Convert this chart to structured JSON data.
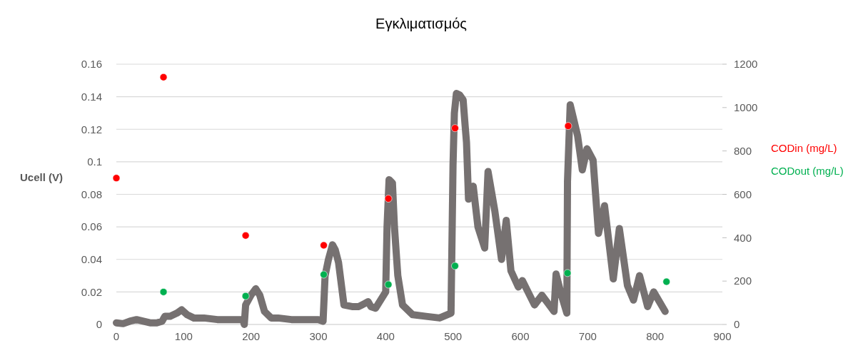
{
  "chart_data": {
    "type": "scatter",
    "title": "Εγκλιματισμός",
    "ylabel": "Ucell (V)",
    "xlim": [
      0,
      900
    ],
    "xticks": [
      0,
      100,
      200,
      300,
      400,
      500,
      600,
      700,
      800,
      900
    ],
    "ylim": [
      0,
      0.16
    ],
    "yticks": [
      0,
      0.02,
      0.04,
      0.06,
      0.08,
      0.1,
      0.12,
      0.14,
      0.16
    ],
    "y2lim": [
      0,
      1200
    ],
    "y2ticks": [
      0,
      200,
      400,
      600,
      800,
      1000,
      1200
    ],
    "grid": "y",
    "legend": "right",
    "marker": "circle",
    "series": [
      {
        "type": "line",
        "marker": "none",
        "color": "#767171",
        "x": [
          0,
          10,
          20,
          30,
          40,
          50,
          60,
          68,
          72,
          80,
          90,
          97,
          105,
          115,
          130,
          150,
          170,
          188,
          190,
          192,
          200,
          207,
          213,
          220,
          230,
          240,
          260,
          280,
          300,
          307,
          310,
          315,
          321,
          325,
          330,
          338,
          350,
          360,
          374,
          378,
          385,
          400,
          402,
          405,
          410,
          413,
          418,
          425,
          440,
          460,
          480,
          497,
          500,
          502,
          505,
          510,
          515,
          518,
          520,
          523,
          530,
          537,
          547,
          552,
          562,
          572,
          579,
          586,
          597,
          603,
          621,
          632,
          650,
          653,
          661,
          669,
          670,
          674,
          685,
          692,
          699,
          708,
          716,
          725,
          738,
          747,
          759,
          768,
          777,
          789,
          798,
          815
        ],
        "values": [
          0.001,
          0.0005,
          0.002,
          0.003,
          0.002,
          0.001,
          0.001,
          0.002,
          0.005,
          0.005,
          0.007,
          0.009,
          0.006,
          0.004,
          0.004,
          0.003,
          0.003,
          0.003,
          0.0,
          0.012,
          0.018,
          0.022,
          0.018,
          0.008,
          0.004,
          0.004,
          0.003,
          0.003,
          0.003,
          0.002,
          0.03,
          0.04,
          0.049,
          0.046,
          0.038,
          0.012,
          0.011,
          0.011,
          0.014,
          0.011,
          0.01,
          0.02,
          0.06,
          0.089,
          0.087,
          0.06,
          0.03,
          0.012,
          0.006,
          0.005,
          0.004,
          0.007,
          0.098,
          0.13,
          0.142,
          0.141,
          0.138,
          0.122,
          0.112,
          0.077,
          0.085,
          0.06,
          0.047,
          0.094,
          0.07,
          0.04,
          0.064,
          0.033,
          0.023,
          0.027,
          0.012,
          0.018,
          0.008,
          0.031,
          0.018,
          0.007,
          0.088,
          0.135,
          0.116,
          0.095,
          0.108,
          0.101,
          0.056,
          0.073,
          0.028,
          0.059,
          0.024,
          0.015,
          0.03,
          0.011,
          0.02,
          0.008
        ]
      },
      {
        "name": "CODin (mg/L)",
        "axis": "y2",
        "color": "#ff0000",
        "x": [
          0,
          70,
          192,
          308,
          404,
          503,
          671
        ],
        "values": [
          675,
          1140,
          410,
          365,
          580,
          905,
          915
        ]
      },
      {
        "name": "CODout (mg/L)",
        "axis": "y2",
        "color": "#00b050",
        "x": [
          70,
          192,
          308,
          404,
          503,
          670,
          817
        ],
        "values": [
          150,
          131,
          230,
          184,
          270,
          237,
          197
        ]
      }
    ]
  }
}
